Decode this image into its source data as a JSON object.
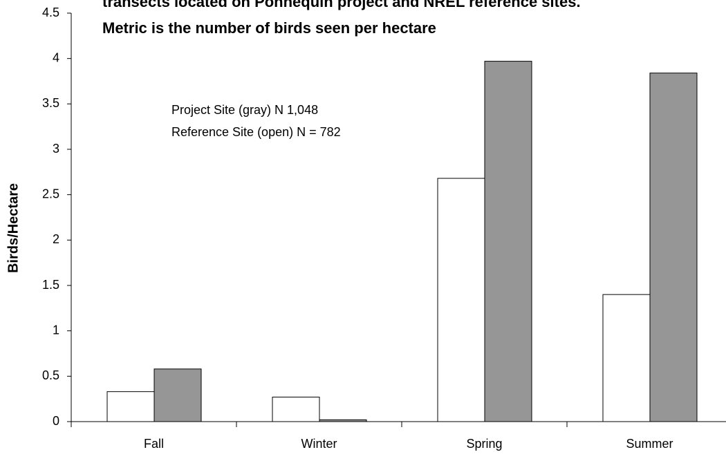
{
  "chart_data": {
    "type": "bar",
    "title_lines": [
      "transects located on Ponnequin project and NREL reference sites.",
      "Metric is the number of birds seen per hectare"
    ],
    "y_label": "Birds/Hectare",
    "annotations": [
      "Project Site (gray) N 1,048",
      "Reference Site (open) N = 782"
    ],
    "categories": [
      "Fall",
      "Winter",
      "Spring",
      "Summer"
    ],
    "series": [
      {
        "color": "#ffffff",
        "values": [
          0.33,
          0.27,
          2.68,
          1.4
        ]
      },
      {
        "color": "#969696",
        "values": [
          0.58,
          0.02,
          3.97,
          3.84
        ]
      }
    ],
    "ylim": [
      0,
      4.5
    ],
    "yticks": [
      0,
      0.5,
      1,
      1.5,
      2,
      2.5,
      3,
      3.5,
      4,
      4.5
    ],
    "grid": false
  }
}
